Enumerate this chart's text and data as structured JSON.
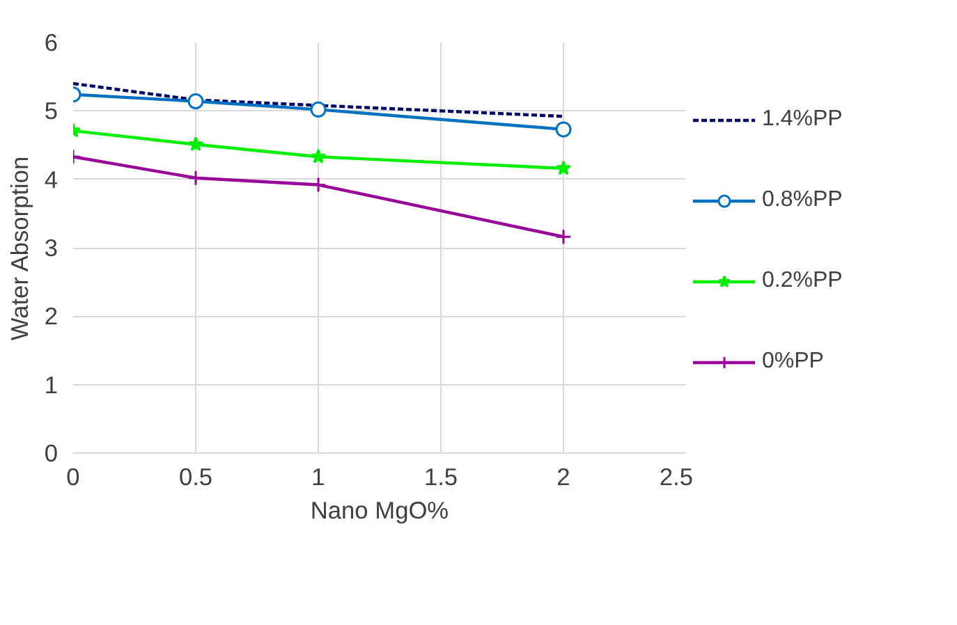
{
  "chart_data": {
    "type": "line",
    "xlabel": "Nano MgO%",
    "ylabel": "Water Absorption",
    "x": [
      0,
      0.5,
      1,
      2
    ],
    "xlim": [
      0,
      2.5
    ],
    "xticks": [
      0,
      0.5,
      1,
      1.5,
      2,
      2.5
    ],
    "ylim": [
      0,
      6
    ],
    "yticks": [
      0,
      1,
      2,
      3,
      4,
      5,
      6
    ],
    "grid": true,
    "legend": "right",
    "series": [
      {
        "name": "1.4%PP",
        "color": "#000066",
        "values": [
          5.4,
          5.16,
          5.08,
          4.92
        ],
        "marker": "none",
        "line_style": "dashed"
      },
      {
        "name": "0.8%PP",
        "color": "#0070c0",
        "values": [
          5.24,
          5.14,
          5.02,
          4.73
        ],
        "marker": "circle",
        "line_style": "solid"
      },
      {
        "name": "0.2%PP",
        "color": "#00ee00",
        "values": [
          4.71,
          4.51,
          4.33,
          4.16
        ],
        "marker": "star",
        "line_style": "solid"
      },
      {
        "name": "0%PP",
        "color": "#990099",
        "values": [
          4.33,
          4.02,
          3.92,
          3.16
        ],
        "marker": "cross",
        "line_style": "solid"
      }
    ]
  }
}
